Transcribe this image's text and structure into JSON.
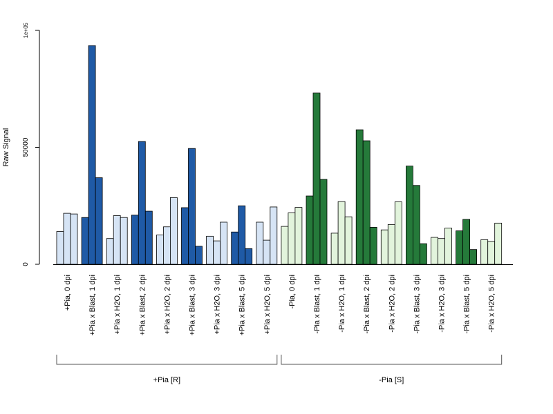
{
  "chart_data": {
    "type": "bar",
    "ylabel": "Raw Signal",
    "ylim": [
      0,
      100000
    ],
    "yticks": [
      {
        "value": 0,
        "label": "0"
      },
      {
        "value": 50000,
        "label": "50000"
      },
      {
        "value": 100000,
        "label": "1e+05"
      }
    ],
    "grid": false,
    "colors": {
      "blue_light": "#d6e4f5",
      "blue_dark": "#1f5aa6",
      "green_light": "#e2f4dc",
      "green_dark": "#257a3a",
      "bar_border": "#000000"
    },
    "categories": [
      {
        "label": "+Pia, 0 dpi",
        "group": "+Pia [R]",
        "style": "blue_light",
        "values": [
          14000,
          21800,
          21500
        ]
      },
      {
        "label": "+Pia x Blast, 1 dpi",
        "group": "+Pia [R]",
        "style": "blue_dark",
        "values": [
          20000,
          93500,
          37000
        ]
      },
      {
        "label": "+Pia x H2O, 1 dpi",
        "group": "+Pia [R]",
        "style": "blue_light",
        "values": [
          11000,
          20800,
          20000
        ]
      },
      {
        "label": "+Pia x Blast, 2 dpi",
        "group": "+Pia [R]",
        "style": "blue_dark",
        "values": [
          21000,
          52500,
          22700
        ]
      },
      {
        "label": "+Pia x H2O, 2 dpi",
        "group": "+Pia [R]",
        "style": "blue_light",
        "values": [
          12500,
          16000,
          28500
        ]
      },
      {
        "label": "+Pia x Blast, 3 dpi",
        "group": "+Pia [R]",
        "style": "blue_dark",
        "values": [
          24200,
          49500,
          7700
        ]
      },
      {
        "label": "+Pia x H2O, 3 dpi",
        "group": "+Pia [R]",
        "style": "blue_light",
        "values": [
          12000,
          10000,
          18000
        ]
      },
      {
        "label": "+Pia x Blast, 5 dpi",
        "group": "+Pia [R]",
        "style": "blue_dark",
        "values": [
          13800,
          25000,
          6700
        ]
      },
      {
        "label": "+Pia x H2O, 5 dpi",
        "group": "+Pia [R]",
        "style": "blue_light",
        "values": [
          18000,
          10300,
          24500
        ]
      },
      {
        "label": "-Pia, 0 dpi",
        "group": "-Pia [S]",
        "style": "green_light",
        "values": [
          16200,
          22000,
          24300
        ]
      },
      {
        "label": "-Pia x Blast, 1 dpi",
        "group": "-Pia [S]",
        "style": "green_dark",
        "values": [
          29200,
          73200,
          36300
        ]
      },
      {
        "label": "-Pia x H2O, 1 dpi",
        "group": "-Pia [S]",
        "style": "green_light",
        "values": [
          13300,
          26800,
          20300
        ]
      },
      {
        "label": "-Pia x Blast, 2 dpi",
        "group": "-Pia [S]",
        "style": "green_dark",
        "values": [
          57500,
          52800,
          15800
        ]
      },
      {
        "label": "-Pia x H2O, 2 dpi",
        "group": "-Pia [S]",
        "style": "green_light",
        "values": [
          14700,
          17000,
          26700
        ]
      },
      {
        "label": "-Pia x Blast, 3 dpi",
        "group": "-Pia [S]",
        "style": "green_dark",
        "values": [
          42000,
          33700,
          8800
        ]
      },
      {
        "label": "-Pia x H2O, 3 dpi",
        "group": "-Pia [S]",
        "style": "green_light",
        "values": [
          11500,
          11000,
          15500
        ]
      },
      {
        "label": "-Pia x Blast, 5 dpi",
        "group": "-Pia [S]",
        "style": "green_dark",
        "values": [
          14300,
          19200,
          6300
        ]
      },
      {
        "label": "-Pia x H2O, 5 dpi",
        "group": "-Pia [S]",
        "style": "green_light",
        "values": [
          10500,
          9800,
          17600
        ]
      }
    ],
    "groups": [
      {
        "label": "+Pia [R]",
        "first": 0,
        "last": 8
      },
      {
        "label": "-Pia [S]",
        "first": 9,
        "last": 17
      }
    ]
  }
}
